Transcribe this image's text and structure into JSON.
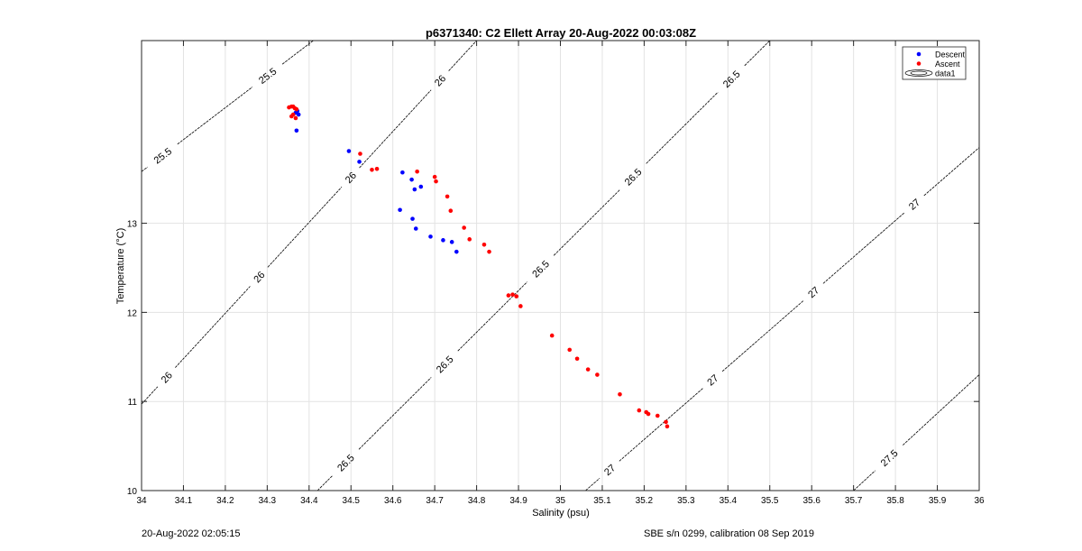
{
  "chart_data": {
    "type": "scatter",
    "title": "p6371340: C2 Ellett Array 20-Aug-2022 00:03:08Z",
    "xlabel": "Salinity (psu)",
    "ylabel": "Temperature (°C)",
    "xlim": [
      34,
      36
    ],
    "ylim": [
      10,
      15.05
    ],
    "xticks": [
      34,
      34.1,
      34.2,
      34.3,
      34.4,
      34.5,
      34.6,
      34.7,
      34.8,
      34.9,
      35,
      35.1,
      35.2,
      35.3,
      35.4,
      35.5,
      35.6,
      35.7,
      35.8,
      35.9,
      36
    ],
    "xtick_labels": [
      "34",
      "34.1",
      "34.2",
      "34.3",
      "34.4",
      "34.5",
      "34.6",
      "34.7",
      "34.8",
      "34.9",
      "35",
      "35.1",
      "35.2",
      "35.3",
      "35.4",
      "35.5",
      "35.6",
      "35.7",
      "35.8",
      "35.9",
      "36"
    ],
    "yticks": [
      10,
      11,
      12,
      13
    ],
    "ytick_labels": [
      "10",
      "11",
      "12",
      "13"
    ],
    "grid": true,
    "legend": {
      "placement": "top-right",
      "entries": [
        {
          "name": "Descent",
          "color": "#0000ff",
          "marker": "dot"
        },
        {
          "name": "Ascent",
          "color": "#ff0000",
          "marker": "dot"
        },
        {
          "name": "data1",
          "marker": "contour"
        }
      ]
    },
    "series": [
      {
        "name": "Descent",
        "color": "#0000ff",
        "points": [
          [
            34.372,
            14.26
          ],
          [
            34.368,
            14.24
          ],
          [
            34.375,
            14.22
          ],
          [
            34.37,
            14.04
          ],
          [
            34.495,
            13.81
          ],
          [
            34.52,
            13.69
          ],
          [
            34.623,
            13.57
          ],
          [
            34.645,
            13.49
          ],
          [
            34.667,
            13.41
          ],
          [
            34.652,
            13.38
          ],
          [
            34.617,
            13.15
          ],
          [
            34.647,
            13.05
          ],
          [
            34.655,
            12.94
          ],
          [
            34.69,
            12.85
          ],
          [
            34.72,
            12.81
          ],
          [
            34.741,
            12.79
          ],
          [
            34.752,
            12.68
          ]
        ]
      },
      {
        "name": "Ascent",
        "color": "#ff0000",
        "points": [
          [
            34.352,
            14.3
          ],
          [
            34.358,
            14.31
          ],
          [
            34.362,
            14.31
          ],
          [
            34.366,
            14.29
          ],
          [
            34.37,
            14.28
          ],
          [
            34.362,
            14.22
          ],
          [
            34.358,
            14.2
          ],
          [
            34.368,
            14.18
          ],
          [
            34.522,
            13.78
          ],
          [
            34.55,
            13.6
          ],
          [
            34.562,
            13.61
          ],
          [
            34.658,
            13.58
          ],
          [
            34.7,
            13.52
          ],
          [
            34.703,
            13.47
          ],
          [
            34.73,
            13.3
          ],
          [
            34.738,
            13.14
          ],
          [
            34.77,
            12.95
          ],
          [
            34.783,
            12.82
          ],
          [
            34.818,
            12.76
          ],
          [
            34.83,
            12.68
          ],
          [
            34.876,
            12.19
          ],
          [
            34.886,
            12.2
          ],
          [
            34.895,
            12.18
          ],
          [
            34.905,
            12.07
          ],
          [
            34.98,
            11.74
          ],
          [
            35.022,
            11.58
          ],
          [
            35.04,
            11.48
          ],
          [
            35.066,
            11.36
          ],
          [
            35.088,
            11.3
          ],
          [
            35.142,
            11.08
          ],
          [
            35.188,
            10.9
          ],
          [
            35.205,
            10.88
          ],
          [
            35.21,
            10.86
          ],
          [
            35.232,
            10.84
          ],
          [
            35.252,
            10.77
          ],
          [
            35.255,
            10.72
          ]
        ]
      }
    ],
    "contours": [
      {
        "label": "25.5",
        "line": [
          [
            34,
            13.58
          ],
          [
            34.41,
            15.05
          ]
        ],
        "label_positions": [
          [
            34.05,
            13.76
          ],
          [
            34.3,
            14.66
          ]
        ]
      },
      {
        "label": "26",
        "line": [
          [
            34,
            10.97
          ],
          [
            34.8,
            15.05
          ]
        ],
        "label_positions": [
          [
            34.06,
            11.27
          ],
          [
            34.31,
            12.27
          ],
          [
            34.56,
            13.25
          ],
          [
            34.81,
            14.18
          ]
        ]
      },
      {
        "label": "26.5",
        "line": [
          [
            34.42,
            10
          ],
          [
            35.5,
            15.05
          ]
        ],
        "label_positions": [
          [
            34.49,
            10.3
          ],
          [
            34.74,
            11.34
          ],
          [
            34.98,
            12.36
          ],
          [
            35.22,
            13.3
          ],
          [
            35.48,
            14.28
          ]
        ]
      },
      {
        "label": "27",
        "line": [
          [
            35.06,
            10
          ],
          [
            36,
            13.85
          ]
        ],
        "label_positions": [
          [
            35.12,
            10.22
          ],
          [
            35.36,
            11.26
          ],
          [
            35.6,
            12.25
          ],
          [
            35.84,
            13.24
          ]
        ]
      },
      {
        "label": "27.5",
        "line": [
          [
            35.7,
            10
          ],
          [
            36,
            11.3
          ]
        ],
        "label_positions": [
          [
            35.79,
            10.34
          ]
        ]
      }
    ]
  },
  "footer": {
    "left": "20-Aug-2022 02:05:15",
    "right": "SBE s/n 0299, calibration 08 Sep 2019"
  }
}
